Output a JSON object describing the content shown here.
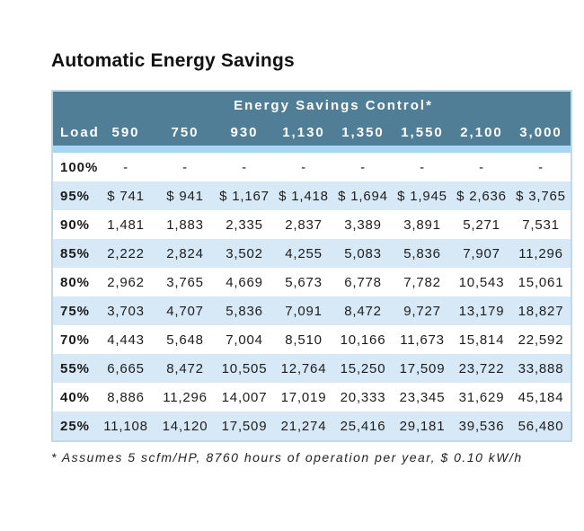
{
  "title": "Automatic Energy Savings",
  "footnote": "* Assumes 5 scfm/HP, 8760 hours of operation per year, $ 0.10 kW/h",
  "colors": {
    "header_background": "#4F7E96",
    "header_text": "#FFFFFF",
    "divider_strip": "#A8D5F1",
    "alternate_row": "#D7E8F6",
    "table_border": "#C2D9EB",
    "body_text": "#1D1D1D"
  },
  "chart_data": {
    "type": "table",
    "title": "Automatic Energy Savings",
    "banner": "Energy Savings Control*",
    "columns": [
      "Load",
      "590",
      "750",
      "930",
      "1,130",
      "1,350",
      "1,550",
      "2,100",
      "3,000"
    ],
    "rows": [
      {
        "load": "100%",
        "values": [
          "-",
          "-",
          "-",
          "-",
          "-",
          "-",
          "-",
          "-"
        ]
      },
      {
        "load": "95%",
        "values": [
          "$ 741",
          "$ 941",
          "$ 1,167",
          "$ 1,418",
          "$ 1,694",
          "$ 1,945",
          "$ 2,636",
          "$ 3,765"
        ]
      },
      {
        "load": "90%",
        "values": [
          "1,481",
          "1,883",
          "2,335",
          "2,837",
          "3,389",
          "3,891",
          "5,271",
          "7,531"
        ]
      },
      {
        "load": "85%",
        "values": [
          "2,222",
          "2,824",
          "3,502",
          "4,255",
          "5,083",
          "5,836",
          "7,907",
          "11,296"
        ]
      },
      {
        "load": "80%",
        "values": [
          "2,962",
          "3,765",
          "4,669",
          "5,673",
          "6,778",
          "7,782",
          "10,543",
          "15,061"
        ]
      },
      {
        "load": "75%",
        "values": [
          "3,703",
          "4,707",
          "5,836",
          "7,091",
          "8,472",
          "9,727",
          "13,179",
          "18,827"
        ]
      },
      {
        "load": "70%",
        "values": [
          "4,443",
          "5,648",
          "7,004",
          "8,510",
          "10,166",
          "11,673",
          "15,814",
          "22,592"
        ]
      },
      {
        "load": "55%",
        "values": [
          "6,665",
          "8,472",
          "10,505",
          "12,764",
          "15,250",
          "17,509",
          "23,722",
          "33,888"
        ]
      },
      {
        "load": "40%",
        "values": [
          "8,886",
          "11,296",
          "14,007",
          "17,019",
          "20,333",
          "23,345",
          "31,629",
          "45,184"
        ]
      },
      {
        "load": "25%",
        "values": [
          "11,108",
          "14,120",
          "17,509",
          "21,274",
          "25,416",
          "29,181",
          "39,536",
          "56,480"
        ]
      }
    ],
    "footnote": "* Assumes 5 scfm/HP, 8760 hours of operation per year, $ 0.10 kW/h",
    "layout": {
      "banner_spans_value_columns": true,
      "alternating_rows_start": "95%"
    }
  }
}
